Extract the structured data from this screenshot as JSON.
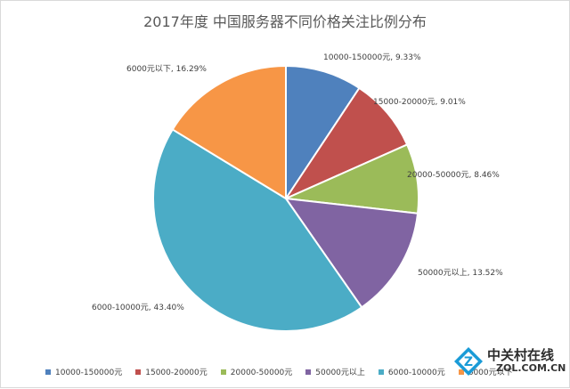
{
  "chart_data": {
    "type": "pie",
    "title": "2017年度 中国服务器不同价格关注比例分布",
    "categories": [
      "10000-150000元",
      "15000-20000元",
      "20000-50000元",
      "50000元以上",
      "6000-10000元",
      "6000元以下"
    ],
    "values": [
      9.33,
      9.01,
      8.46,
      13.52,
      43.4,
      16.29
    ],
    "data_labels": [
      "10000-150000元, 9.33%",
      "15000-20000元, 9.01%",
      "20000-50000元, 8.46%",
      "50000元以上, 13.52%",
      "6000-10000元, 43.40%",
      "6000元以下, 16.29%"
    ],
    "colors": [
      "#4f81bd",
      "#c0504d",
      "#9bbb59",
      "#8064a2",
      "#4bacc6",
      "#f79646"
    ],
    "start_angle": "12 o'clock",
    "direction": "clockwise",
    "legend": {
      "position": "bottom",
      "items": [
        "10000-150000元",
        "15000-20000元",
        "20000-50000元",
        "50000元以上",
        "6000-10000元",
        "6000元以下"
      ]
    }
  },
  "watermark": {
    "text_cn": "中关村在线",
    "text_en": "ZOL.COM.CN",
    "icon": "zol-logo-icon"
  }
}
